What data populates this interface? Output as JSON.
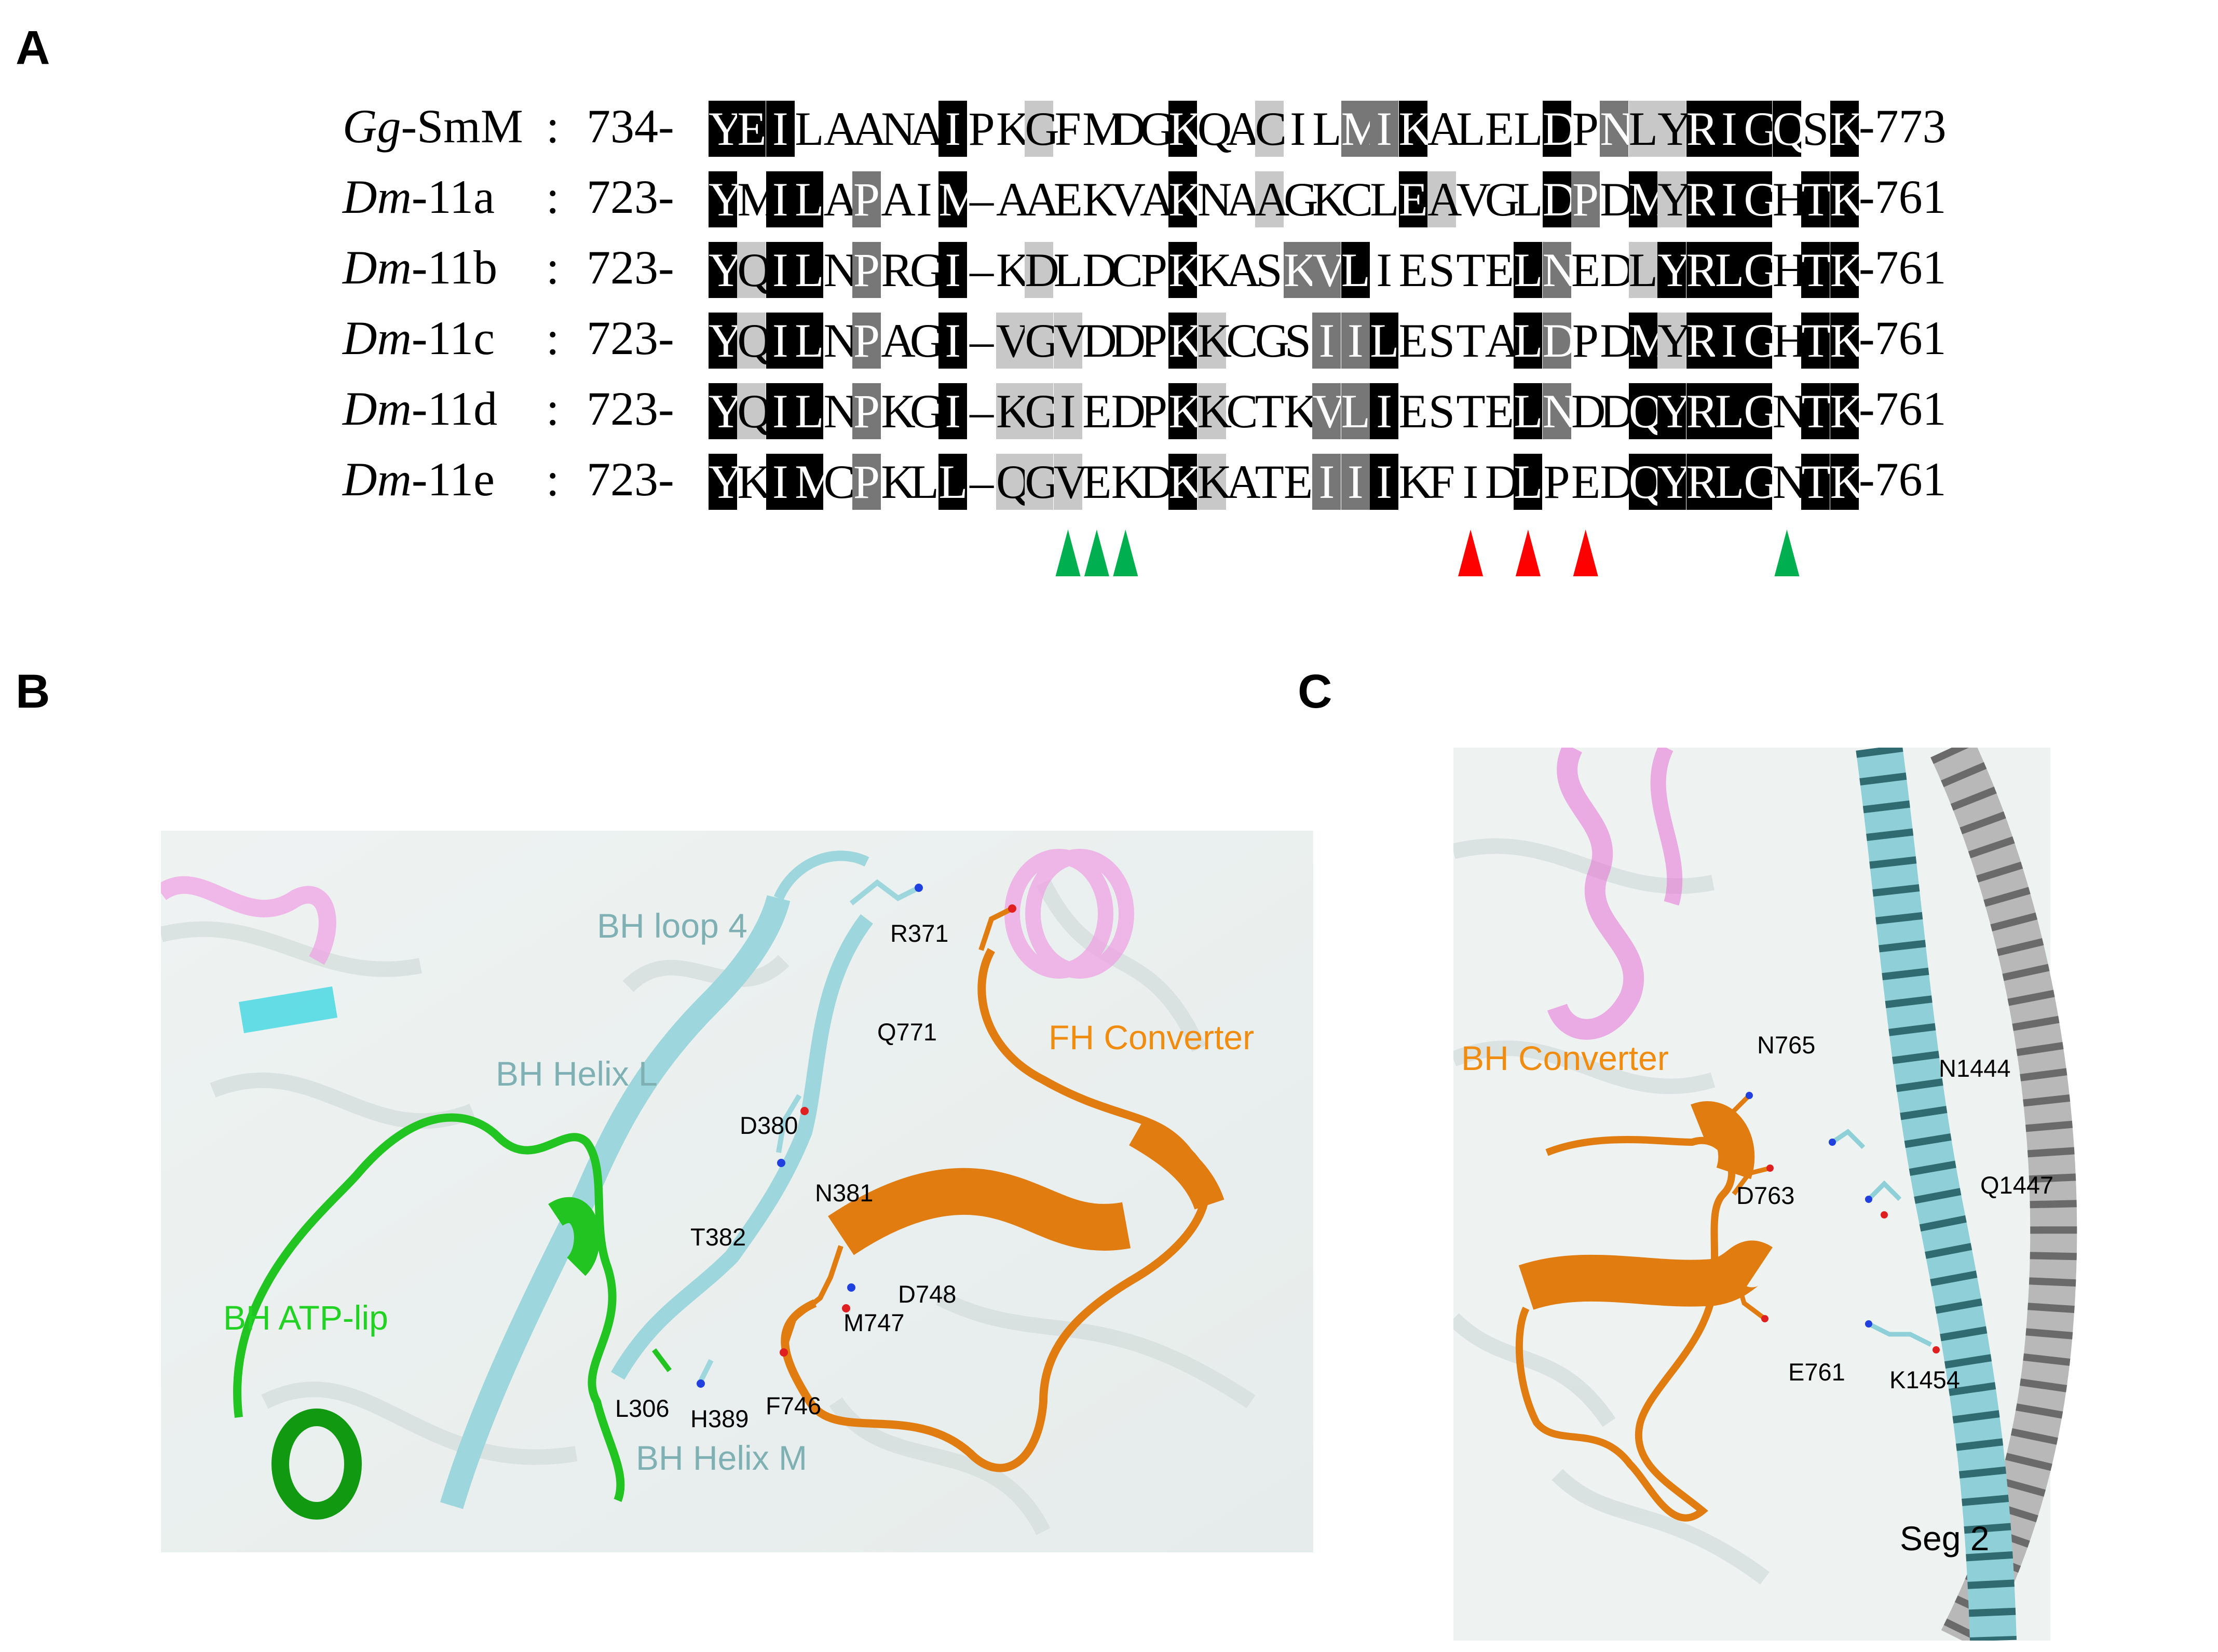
{
  "panel_letters": {
    "a": "A",
    "b": "B",
    "c": "C"
  },
  "alignment": {
    "rows": [
      {
        "species_it": "Gg",
        "species_rest": "-SmM",
        "colon": ":",
        "start": "734-",
        "end": "-773",
        "seq": "YEILAANAIPKGFMDGKQACILMIKALELDPNLYRIGQSK",
        "shade": "3330000030010000300100223000030211333303"
      },
      {
        "species_it": "Dm",
        "species_rest": "-11a",
        "colon": ":",
        "start": "723-",
        "end": "-761",
        "seq": "YMILAPAIM-AAEKVAKNAAGKCLEAVGLDPDMYRIGHTK",
        "shade": "3033020030000000300100003100032031333033"
      },
      {
        "species_it": "Dm",
        "species_rest": "-11b",
        "colon": ":",
        "start": "723-",
        "end": "-761",
        "seq": "YQILNPRGI-KDLDCPKKASKVLIESTELNEDLYRLGHTK",
        "shade": "3133020030010000300022300000320013333033"
      },
      {
        "species_it": "Dm",
        "species_rest": "-11c",
        "colon": ":",
        "start": "723-",
        "end": "-761",
        "seq": "YQILNPAGI-VGVDDPKKCGSIILESTALDPDMYRIGHTK",
        "shade": "3133020030111000310002230000320031333033"
      },
      {
        "species_it": "Dm",
        "species_rest": "-11d",
        "colon": ":",
        "start": "723-",
        "end": "-761",
        "seq": "YQILNPKGI-KGIEDPKKCTKVLIESTELNDDQYRLGNTK",
        "shade": "3133020030111000310002230000320033333033"
      },
      {
        "species_it": "Dm",
        "species_rest": "-11e",
        "colon": ":",
        "start": "723-",
        "end": "-761",
        "seq": "YKIMCPKLL-QGVEKDKKATEIIIKFIDLPEDQYRLGNTK",
        "shade": "3033020030111000310002230000300033333033"
      }
    ],
    "markers": [
      {
        "color": "#00b050",
        "position": 12
      },
      {
        "color": "#00b050",
        "position": 13
      },
      {
        "color": "#00b050",
        "position": 14
      },
      {
        "color": "#ff0000",
        "position": 26
      },
      {
        "color": "#ff0000",
        "position": 28
      },
      {
        "color": "#ff0000",
        "position": 30
      },
      {
        "color": "#00b050",
        "position": 37
      }
    ],
    "shade_colors": {
      "none": "#ffffff",
      "light": "#c8c8c8",
      "medium": "#777777",
      "dark": "#000000"
    }
  },
  "panel_b": {
    "labels": {
      "bh_loop4": "BH loop 4",
      "bh_helix_l": "BH Helix L",
      "bh_atp_lip": "BH ATP-lip",
      "bh_helix_m": "BH Helix M",
      "fh_converter": "FH Converter"
    },
    "residues": {
      "r371": "R371",
      "q771": "Q771",
      "d380": "D380",
      "n381": "N381",
      "t382": "T382",
      "d748": "D748",
      "m747": "M747",
      "l306": "L306",
      "h389": "H389",
      "f746": "F746"
    },
    "colors": {
      "cyan": "#8fd0d8",
      "green": "#22c422",
      "orange": "#e07c10",
      "label_cyan": "#7fb0b4",
      "label_green": "#22d222",
      "label_orange": "#f08c10"
    }
  },
  "panel_c": {
    "labels": {
      "bh_converter": "BH Converter",
      "seg2": "Seg 2"
    },
    "residues": {
      "n765": "N765",
      "n1444": "N1444",
      "d763": "D763",
      "q1447": "Q1447",
      "e761": "E761",
      "k1454": "K1454"
    },
    "colors": {
      "cyan": "#8fd0d8",
      "gray": "#b8b8b8",
      "orange": "#e07c10",
      "pink": "#e87ad8"
    }
  }
}
